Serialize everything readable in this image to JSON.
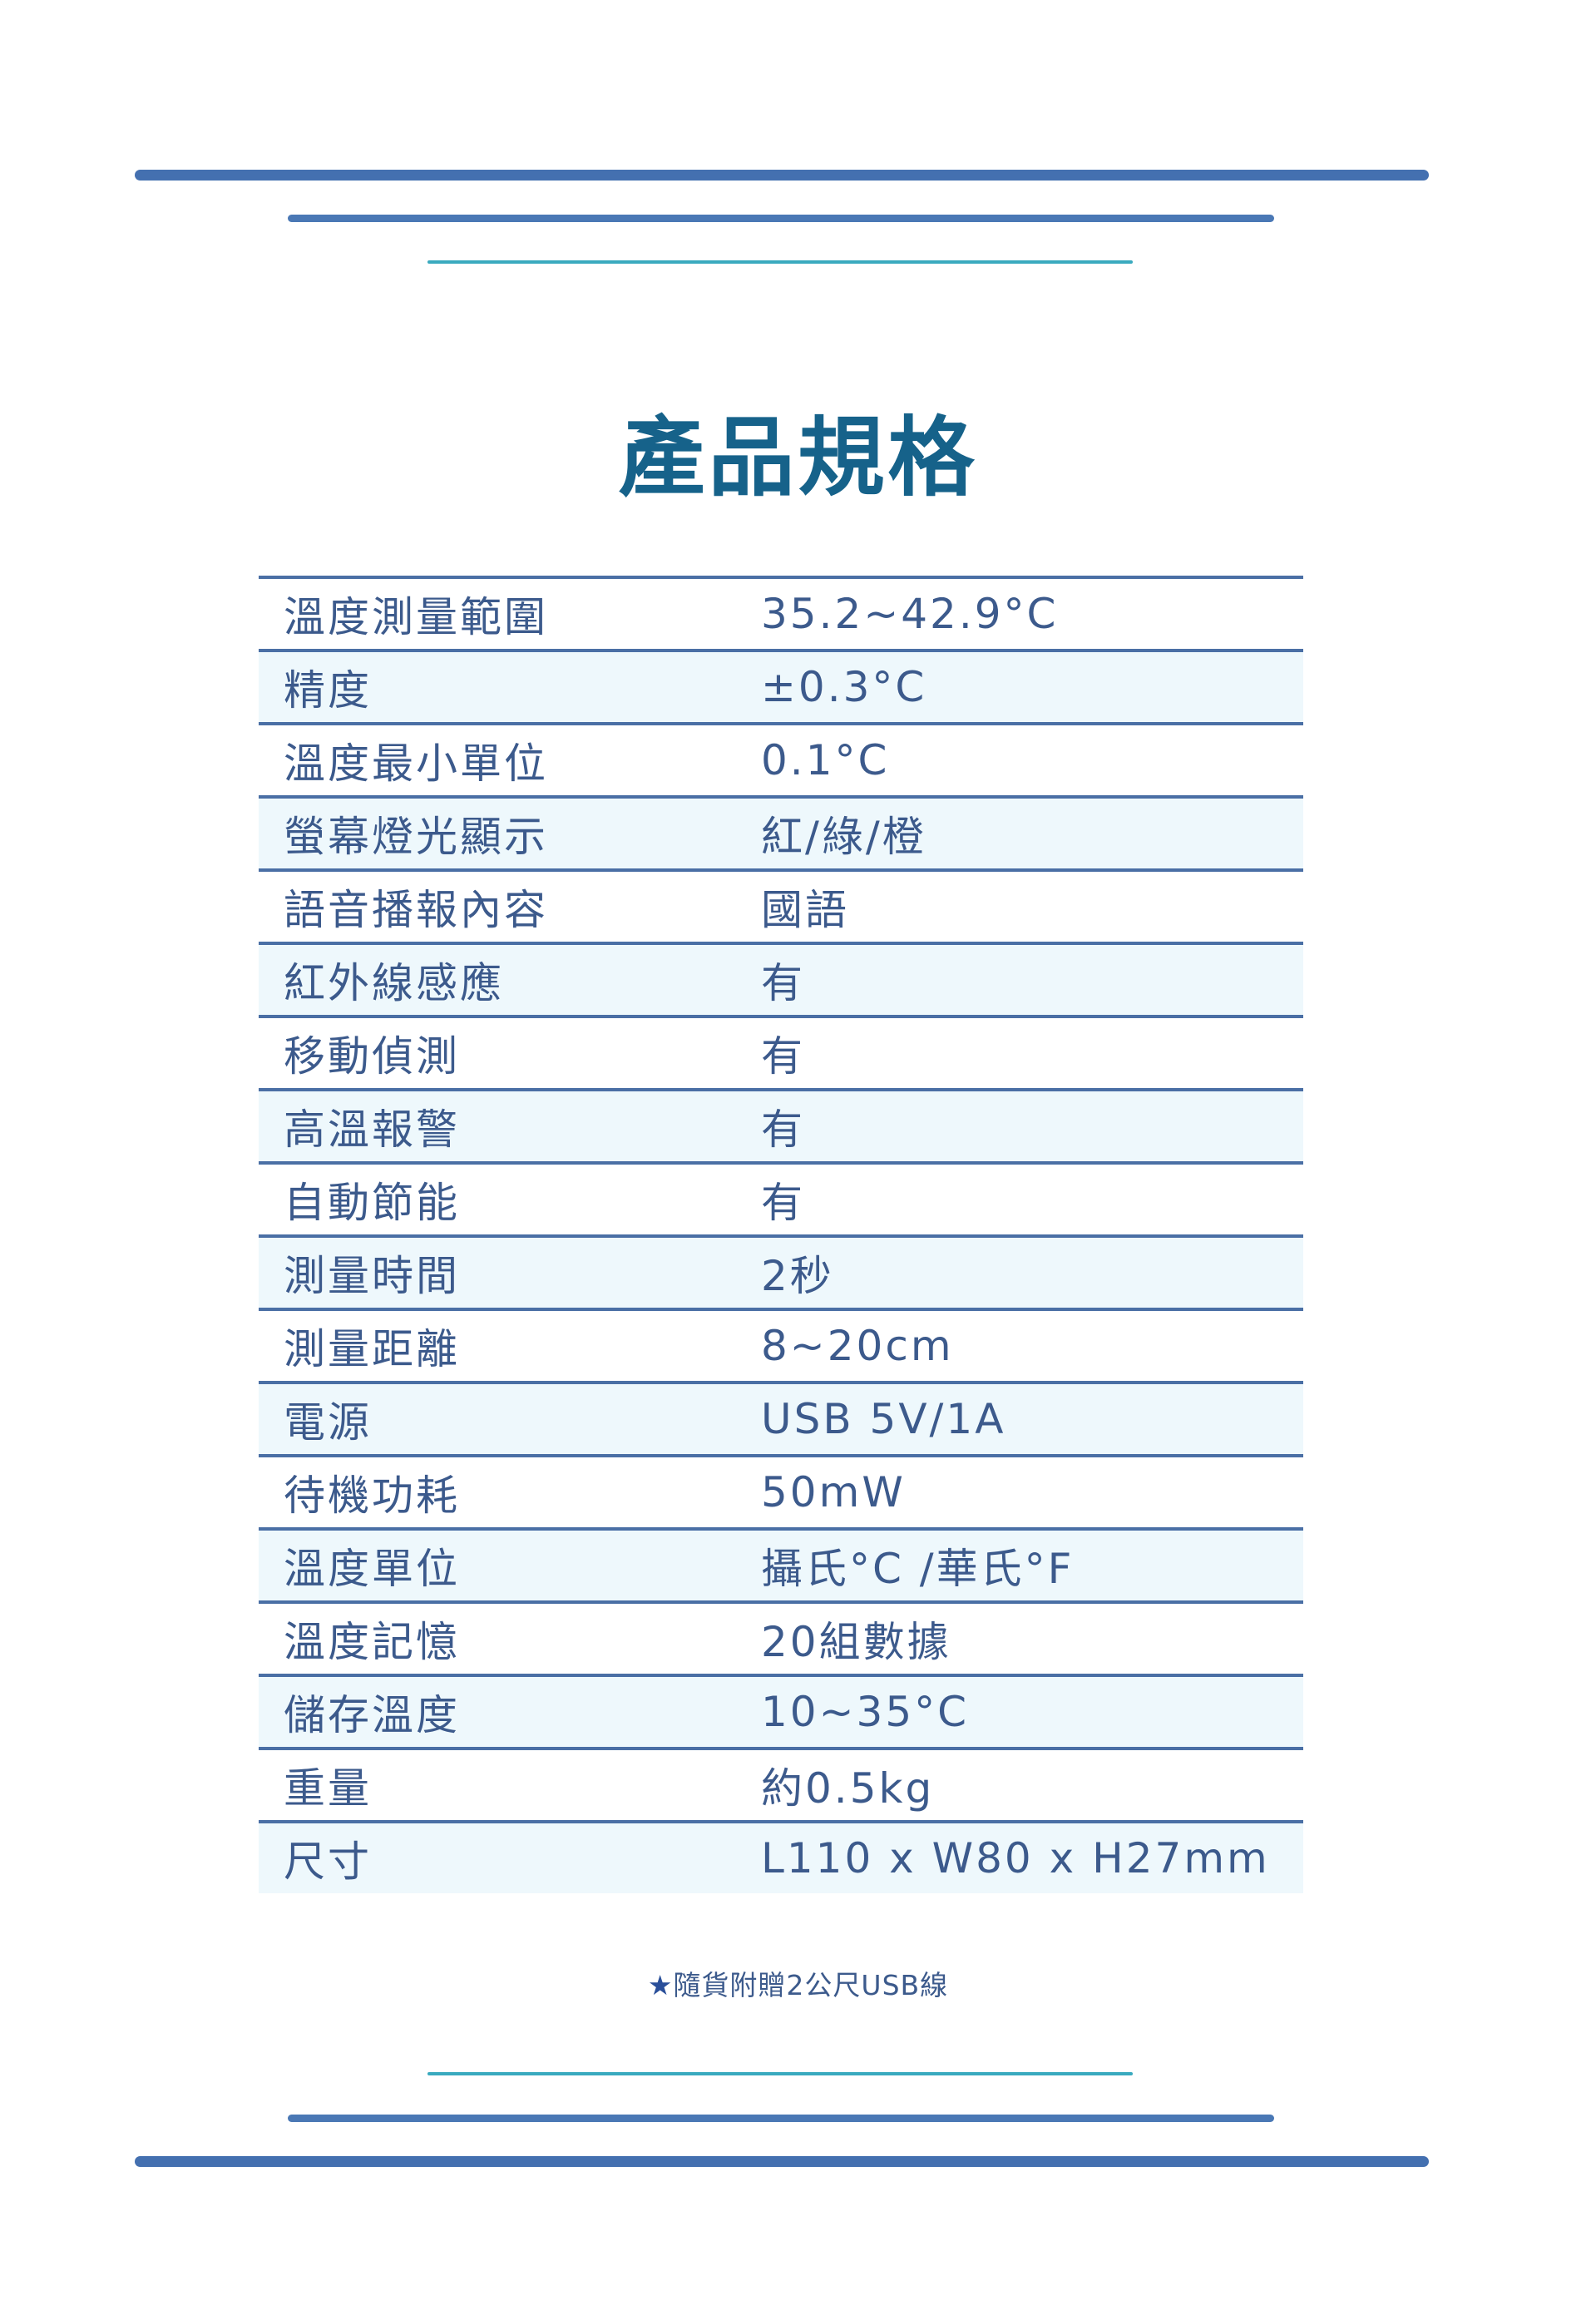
{
  "title": "產品規格",
  "specs": [
    {
      "label": "溫度測量範圍",
      "value": "35.2~42.9°C"
    },
    {
      "label": "精度",
      "value": "±0.3°C"
    },
    {
      "label": "溫度最小單位",
      "value": "0.1°C"
    },
    {
      "label": "螢幕燈光顯示",
      "value": "紅/綠/橙"
    },
    {
      "label": "語音播報內容",
      "value": "國語"
    },
    {
      "label": "紅外線感應",
      "value": "有"
    },
    {
      "label": "移動偵測",
      "value": "有"
    },
    {
      "label": "高溫報警",
      "value": "有"
    },
    {
      "label": "自動節能",
      "value": "有"
    },
    {
      "label": "測量時間",
      "value": "2秒"
    },
    {
      "label": "測量距離",
      "value": "8~20cm"
    },
    {
      "label": "電源",
      "value": "USB 5V/1A"
    },
    {
      "label": "待機功耗",
      "value": "50mW"
    },
    {
      "label": "溫度單位",
      "value": "攝氏°C /華氏°F"
    },
    {
      "label": "溫度記憶",
      "value": "20組數據"
    },
    {
      "label": "儲存溫度",
      "value": "10~35°C"
    },
    {
      "label": "重量",
      "value": "約0.5kg"
    },
    {
      "label": "尺寸",
      "value": "L110 x W80 x H27mm"
    }
  ],
  "note": {
    "icon": "star-icon",
    "star": "★",
    "text": "隨貨附贈2公尺USB線"
  },
  "colors": {
    "line": "#4470b0",
    "accent_line": "#3aaabf",
    "title": "#16628a",
    "text": "#3c5a8c",
    "row_alt_bg": "#eef8fc"
  }
}
